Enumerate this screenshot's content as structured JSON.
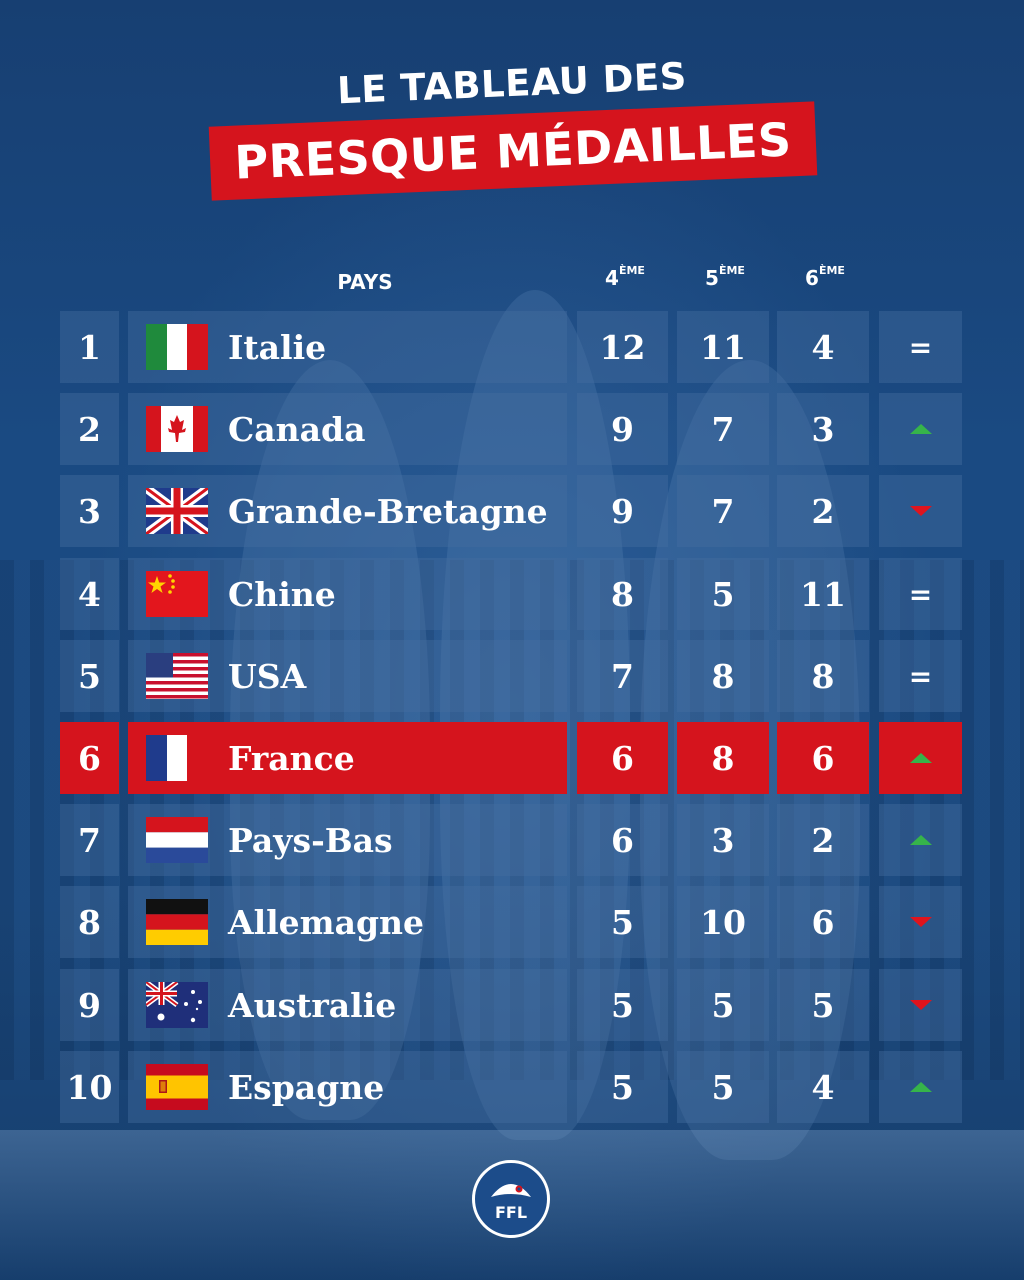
{
  "title": {
    "line1": "LE TABLEAU DES",
    "line2": "PRESQUE MÉDAILLES"
  },
  "colors": {
    "accent": "#d5141d",
    "background": "#1b4a80",
    "trend_up": "#36b44a",
    "trend_down": "#e0141d"
  },
  "table": {
    "headers": {
      "country": "PAYS",
      "place4": "4",
      "place4_sup": "ÈME",
      "place5": "5",
      "place5_sup": "ÈME",
      "place6": "6",
      "place6_sup": "ÈME"
    },
    "rows": [
      {
        "rank": "1",
        "country": "Italie",
        "flag": "italy-flag-icon",
        "p4": "12",
        "p5": "11",
        "p6": "4",
        "trend": "same"
      },
      {
        "rank": "2",
        "country": "Canada",
        "flag": "canada-flag-icon",
        "p4": "9",
        "p5": "7",
        "p6": "3",
        "trend": "up"
      },
      {
        "rank": "3",
        "country": "Grande-Bretagne",
        "flag": "uk-flag-icon",
        "p4": "9",
        "p5": "7",
        "p6": "2",
        "trend": "down"
      },
      {
        "rank": "4",
        "country": "Chine",
        "flag": "china-flag-icon",
        "p4": "8",
        "p5": "5",
        "p6": "11",
        "trend": "same"
      },
      {
        "rank": "5",
        "country": "USA",
        "flag": "usa-flag-icon",
        "p4": "7",
        "p5": "8",
        "p6": "8",
        "trend": "same"
      },
      {
        "rank": "6",
        "country": "France",
        "flag": "france-flag-icon",
        "p4": "6",
        "p5": "8",
        "p6": "6",
        "trend": "up",
        "highlight": true
      },
      {
        "rank": "7",
        "country": "Pays-Bas",
        "flag": "netherlands-flag-icon",
        "p4": "6",
        "p5": "3",
        "p6": "2",
        "trend": "up"
      },
      {
        "rank": "8",
        "country": "Allemagne",
        "flag": "germany-flag-icon",
        "p4": "5",
        "p5": "10",
        "p6": "6",
        "trend": "down"
      },
      {
        "rank": "9",
        "country": "Australie",
        "flag": "australia-flag-icon",
        "p4": "5",
        "p5": "5",
        "p6": "5",
        "trend": "down"
      },
      {
        "rank": "10",
        "country": "Espagne",
        "flag": "spain-flag-icon",
        "p4": "5",
        "p5": "5",
        "p6": "4",
        "trend": "up"
      }
    ],
    "same_symbol": "="
  },
  "logo": {
    "text": "FFL",
    "icon": "napoleon-hat-icon"
  }
}
